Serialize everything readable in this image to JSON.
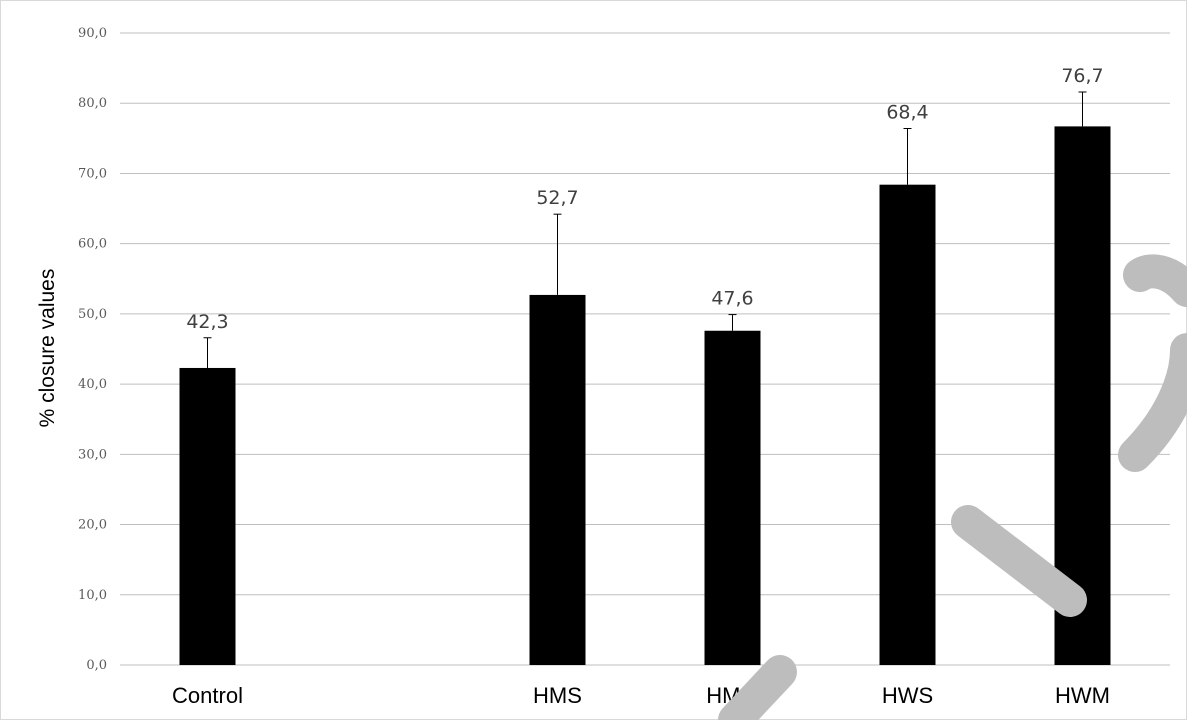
{
  "colors": {
    "bar": "#000000",
    "grid": "#bfbfbf",
    "watermark": "#bdbdbd"
  },
  "chart_data": {
    "type": "bar",
    "title": "",
    "xlabel": "",
    "ylabel": "% closure values",
    "ylim": [
      0,
      90
    ],
    "yticks": [
      "0,0",
      "10,0",
      "20,0",
      "30,0",
      "40,0",
      "50,0",
      "60,0",
      "70,0",
      "80,0",
      "90,0"
    ],
    "categories": [
      "Control",
      "",
      "HMS",
      "HMM",
      "HWS",
      "HWM"
    ],
    "values": [
      42.3,
      null,
      52.7,
      47.6,
      68.4,
      76.7
    ],
    "value_labels": [
      "42,3",
      "",
      "52,7",
      "47,6",
      "68,4",
      "76,7"
    ],
    "error_plus": [
      4.3,
      null,
      11.5,
      2.3,
      8.0,
      4.9
    ],
    "grid": true,
    "legend": "none"
  }
}
